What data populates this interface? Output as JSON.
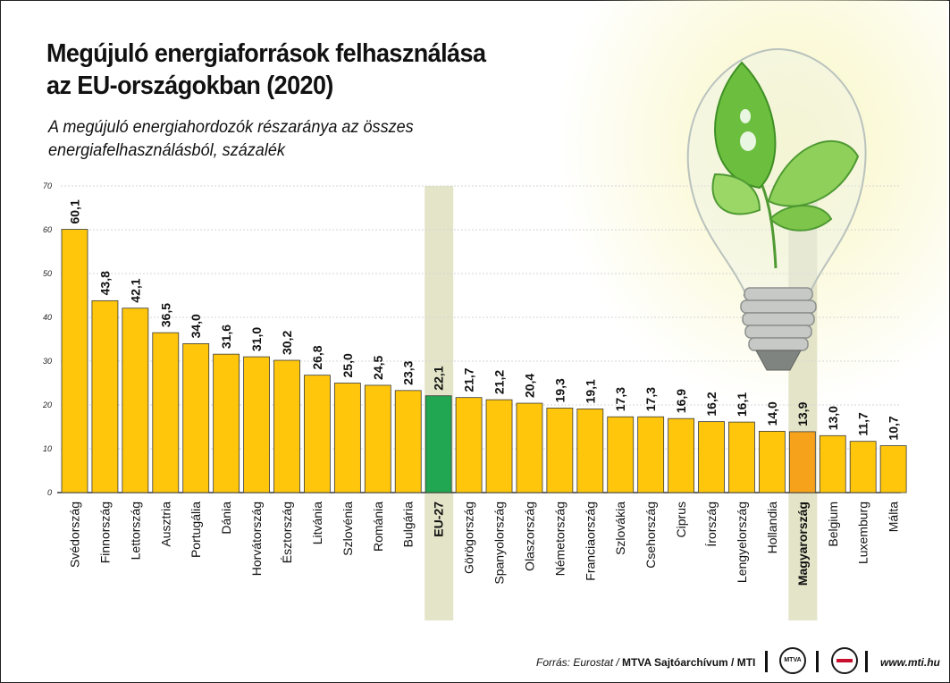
{
  "title_line1": "Megújuló energiaforrások felhasználása",
  "title_line2": "az EU-országokban (2020)",
  "subtitle_line1": "A megújuló energiahordozók részaránya az összes",
  "subtitle_line2": "energiafelhasználásból, százalék",
  "source_prefix": "Forrás: Eurostat / ",
  "source_bold": "MTVA Sajtóarchívum / MTI",
  "logo_mtva": "MTVA",
  "website": "www.mti.hu",
  "colors": {
    "bar": "#FFC60B",
    "eu_bar": "#21A651",
    "hungary_bar": "#F7A21B",
    "highlight_band": "#E3E4C8",
    "text": "#111111"
  },
  "chart_data": {
    "type": "bar",
    "ylim": [
      0,
      70
    ],
    "yticks": [
      0,
      10,
      20,
      30,
      40,
      50,
      60,
      70
    ],
    "grid": true,
    "categories": [
      "Svédország",
      "Finnország",
      "Lettország",
      "Ausztria",
      "Portugália",
      "Dánia",
      "Horvátország",
      "Észtország",
      "Litvánia",
      "Szlovénia",
      "Románia",
      "Bulgária",
      "EU-27",
      "Görögország",
      "Spanyolország",
      "Olaszország",
      "Németország",
      "Franciaország",
      "Szlovákia",
      "Csehország",
      "Ciprus",
      "Írország",
      "Lengyelország",
      "Hollandia",
      "Magyarország",
      "Belgium",
      "Luxemburg",
      "Málta"
    ],
    "values": [
      60.1,
      43.8,
      42.1,
      36.5,
      34.0,
      31.6,
      31.0,
      30.2,
      26.8,
      25.0,
      24.5,
      23.3,
      22.1,
      21.7,
      21.2,
      20.4,
      19.3,
      19.1,
      17.3,
      17.3,
      16.9,
      16.2,
      16.1,
      14.0,
      13.9,
      13.0,
      11.7,
      10.7
    ],
    "value_labels": [
      "60,1",
      "43,8",
      "42,1",
      "36,5",
      "34,0",
      "31,6",
      "31,0",
      "30,2",
      "26,8",
      "25,0",
      "24,5",
      "23,3",
      "22,1",
      "21,7",
      "21,2",
      "20,4",
      "19,3",
      "19,1",
      "17,3",
      "17,3",
      "16,9",
      "16,2",
      "16,1",
      "14,0",
      "13,9",
      "13,0",
      "11,7",
      "10,7"
    ],
    "highlighted": [
      "EU-27",
      "Magyarország"
    ]
  }
}
